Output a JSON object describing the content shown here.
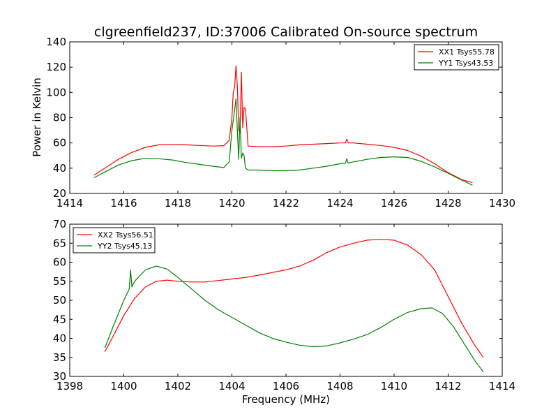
{
  "chart_data": [
    {
      "type": "line",
      "title": "clgreenfield237, ID:37006 Calibrated On-source spectrum",
      "xlabel": "",
      "ylabel": "Power in Kelvin",
      "xlim": [
        1414,
        1430
      ],
      "ylim": [
        20,
        140
      ],
      "xticks": [
        1414,
        1416,
        1418,
        1420,
        1422,
        1424,
        1426,
        1428,
        1430
      ],
      "yticks": [
        20,
        40,
        60,
        80,
        100,
        120,
        140
      ],
      "legend_position": "top-right",
      "series": [
        {
          "name": "XX1 Tsys55.78",
          "color": "#ff0000",
          "x": [
            1414.9,
            1415.3,
            1415.8,
            1416.3,
            1416.8,
            1417.3,
            1417.8,
            1418.3,
            1418.8,
            1419.3,
            1419.7,
            1419.9,
            1420.0,
            1420.05,
            1420.1,
            1420.15,
            1420.2,
            1420.25,
            1420.3,
            1420.35,
            1420.4,
            1420.45,
            1420.5,
            1420.6,
            1421.0,
            1421.5,
            1422.0,
            1422.5,
            1423.0,
            1423.5,
            1424.0,
            1424.2,
            1424.25,
            1424.3,
            1424.5,
            1425.0,
            1425.5,
            1426.0,
            1426.5,
            1427.0,
            1427.5,
            1428.0,
            1428.5,
            1428.9
          ],
          "y": [
            34.5,
            40,
            47,
            52.5,
            56.5,
            58.5,
            58.8,
            58.5,
            58,
            57.5,
            57.8,
            62,
            80,
            100,
            104,
            121,
            105,
            70,
            68,
            116,
            72,
            88,
            87,
            57.5,
            57,
            57,
            57.5,
            58.5,
            59,
            59.5,
            60,
            60,
            63,
            60,
            60,
            59,
            58,
            56.5,
            54,
            49.5,
            43.5,
            36.5,
            31,
            28.5
          ]
        },
        {
          "name": "YY1 Tsys43.53",
          "color": "#008000",
          "x": [
            1414.9,
            1415.3,
            1415.8,
            1416.3,
            1416.8,
            1417.3,
            1417.8,
            1418.3,
            1418.8,
            1419.3,
            1419.7,
            1419.9,
            1420.0,
            1420.1,
            1420.15,
            1420.2,
            1420.25,
            1420.3,
            1420.35,
            1420.4,
            1420.45,
            1420.5,
            1420.6,
            1421.0,
            1421.5,
            1422.0,
            1422.5,
            1423.0,
            1423.5,
            1424.0,
            1424.2,
            1424.25,
            1424.3,
            1424.5,
            1425.0,
            1425.5,
            1426.0,
            1426.5,
            1427.0,
            1427.5,
            1428.0,
            1428.5,
            1428.9
          ],
          "y": [
            32.5,
            37,
            42.5,
            46,
            47.8,
            47.5,
            46.5,
            44.5,
            43,
            41.5,
            40.5,
            45,
            70,
            86,
            95,
            70,
            47,
            80,
            48,
            52,
            50,
            40,
            38.5,
            38.5,
            38,
            38,
            38.5,
            40,
            41.5,
            43.5,
            44,
            47.5,
            44,
            45,
            47,
            48.5,
            49,
            48.5,
            45.5,
            41,
            36,
            30.5,
            26.5
          ]
        }
      ]
    },
    {
      "type": "line",
      "title": "",
      "xlabel": "Frequency (MHz)",
      "ylabel": "",
      "xlim": [
        1398,
        1414
      ],
      "ylim": [
        30,
        70
      ],
      "xticks": [
        1398,
        1400,
        1402,
        1404,
        1406,
        1408,
        1410,
        1412,
        1414
      ],
      "yticks": [
        30,
        35,
        40,
        45,
        50,
        55,
        60,
        65,
        70
      ],
      "legend_position": "top-left",
      "series": [
        {
          "name": "XX2 Tsys56.51",
          "color": "#ff0000",
          "x": [
            1399.3,
            1399.6,
            1400.0,
            1400.4,
            1400.8,
            1401.2,
            1401.6,
            1402.0,
            1402.5,
            1403.0,
            1403.5,
            1404.0,
            1404.5,
            1405.0,
            1405.5,
            1406.0,
            1406.5,
            1407.0,
            1407.5,
            1408.0,
            1408.5,
            1409.0,
            1409.5,
            1410.0,
            1410.5,
            1411.0,
            1411.5,
            1412.0,
            1412.5,
            1413.0,
            1413.3
          ],
          "y": [
            36.5,
            40.5,
            46,
            50.5,
            53.5,
            55,
            55.3,
            55,
            54.8,
            54.8,
            55.2,
            55.6,
            56,
            56.6,
            57.3,
            58,
            59,
            60.5,
            62.5,
            64,
            65,
            65.8,
            66,
            65.8,
            64.5,
            62,
            58,
            51,
            44,
            38,
            35
          ]
        },
        {
          "name": "YY2 Tsys45.13",
          "color": "#008000",
          "x": [
            1399.3,
            1399.6,
            1400.0,
            1400.2,
            1400.25,
            1400.3,
            1400.4,
            1400.8,
            1401.2,
            1401.6,
            1402.0,
            1402.5,
            1403.0,
            1403.5,
            1404.0,
            1404.5,
            1405.0,
            1405.5,
            1406.0,
            1406.5,
            1407.0,
            1407.5,
            1408.0,
            1408.5,
            1409.0,
            1409.5,
            1410.0,
            1410.5,
            1411.0,
            1411.4,
            1411.8,
            1412.2,
            1412.6,
            1413.0,
            1413.3
          ],
          "y": [
            37.5,
            43,
            50,
            53,
            58,
            53.5,
            55,
            58,
            59,
            58.2,
            56,
            53,
            50,
            47.5,
            45.5,
            43.5,
            41.5,
            40,
            39,
            38.2,
            37.8,
            38,
            38.8,
            39.8,
            41,
            42.8,
            45,
            46.8,
            47.8,
            48,
            46.5,
            43,
            38.5,
            34,
            31.2
          ]
        }
      ]
    }
  ]
}
